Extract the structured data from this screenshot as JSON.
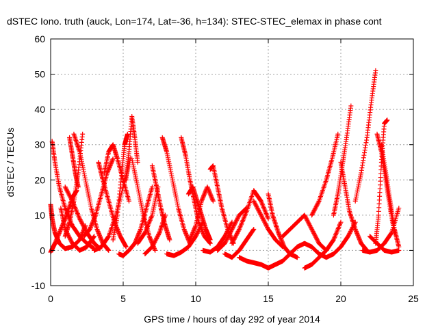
{
  "chart_data": {
    "type": "scatter",
    "title": "dSTEC Iono. truth (auck, Lon=174, Lat=-36, h=134): STEC-STEC_elemax in phase cont",
    "xlabel": "GPS time / hours of day 292 of year 2014",
    "ylabel": "dSTEC  / TECUs",
    "xlim": [
      0,
      25
    ],
    "ylim": [
      -10,
      60
    ],
    "xticks": [
      "0",
      "5",
      "10",
      "15",
      "20",
      "25"
    ],
    "yticks": [
      "-10",
      "0",
      "10",
      "20",
      "30",
      "40",
      "50",
      "60"
    ],
    "grid": true,
    "marker": "+",
    "color": "#ff0000",
    "arcs": [
      {
        "x": [
          0.0,
          0.1,
          0.3,
          0.6,
          1.0,
          1.5,
          2.0,
          2.4
        ],
        "y": [
          13,
          9,
          5,
          2,
          0.5,
          1,
          3,
          7
        ]
      },
      {
        "x": [
          0.1,
          0.3,
          0.6,
          1.0,
          1.5,
          2.0,
          2.5,
          3.0
        ],
        "y": [
          31,
          25,
          18,
          12,
          7,
          4,
          2,
          0.5
        ]
      },
      {
        "x": [
          0.0,
          0.3,
          0.7,
          1.1,
          1.5,
          1.8
        ],
        "y": [
          -0.5,
          2,
          6,
          10,
          15,
          17
        ]
      },
      {
        "x": [
          0.7,
          1.0,
          1.5,
          2.0,
          2.5,
          3.0
        ],
        "y": [
          12,
          6,
          2,
          0,
          1,
          4
        ]
      },
      {
        "x": [
          1.0,
          1.5,
          2.0,
          2.5,
          3.0,
          3.4
        ],
        "y": [
          18,
          14,
          9,
          5,
          2,
          0.5
        ]
      },
      {
        "x": [
          1.3,
          1.5,
          1.7,
          1.9
        ],
        "y": [
          32,
          27,
          22,
          18
        ]
      },
      {
        "x": [
          1.6,
          2.0,
          2.4,
          2.8,
          3.2,
          3.6,
          4.0
        ],
        "y": [
          33,
          28,
          20,
          12,
          6,
          2,
          0
        ]
      },
      {
        "x": [
          1.0,
          1.3,
          1.6,
          1.9,
          2.2
        ],
        "y": [
          4,
          8,
          14,
          22,
          33
        ]
      },
      {
        "x": [
          2.3,
          2.7,
          3.1,
          3.5,
          3.9,
          4.3
        ],
        "y": [
          4,
          6,
          10,
          16,
          22,
          26
        ]
      },
      {
        "x": [
          3.3,
          3.6,
          4.0,
          4.4,
          4.8,
          5.2
        ],
        "y": [
          25,
          20,
          14,
          8,
          4,
          1
        ]
      },
      {
        "x": [
          3.7,
          4.0,
          4.3,
          4.6,
          5.0,
          5.4
        ],
        "y": [
          22,
          28,
          30,
          26,
          20,
          14
        ]
      },
      {
        "x": [
          3.0,
          3.5,
          4.0,
          4.5,
          5.0,
          5.5
        ],
        "y": [
          0,
          1,
          4,
          10,
          18,
          26
        ]
      },
      {
        "x": [
          4.3,
          4.6,
          4.9,
          5.1,
          5.3
        ],
        "y": [
          3,
          10,
          22,
          30,
          33
        ]
      },
      {
        "x": [
          4.7,
          5.0,
          5.4,
          5.8,
          6.2,
          6.6,
          7.0
        ],
        "y": [
          -1,
          -1.5,
          0,
          2,
          6,
          12,
          18
        ]
      },
      {
        "x": [
          5.2,
          5.4,
          5.6,
          5.8,
          6.0
        ],
        "y": [
          20,
          28,
          38,
          32,
          25
        ]
      },
      {
        "x": [
          5.6,
          6.0,
          6.4,
          6.8,
          7.2
        ],
        "y": [
          26,
          18,
          10,
          4,
          0
        ]
      },
      {
        "x": [
          6.0,
          6.5,
          7.0,
          7.4
        ],
        "y": [
          2,
          5,
          10,
          18
        ]
      },
      {
        "x": [
          6.5,
          7.0,
          7.5,
          7.9
        ],
        "y": [
          -1,
          1,
          5,
          10
        ]
      },
      {
        "x": [
          7.0,
          7.3,
          7.6,
          7.9,
          8.2
        ],
        "y": [
          24,
          18,
          12,
          7,
          3
        ]
      },
      {
        "x": [
          7.7,
          8.0,
          8.4,
          8.8,
          9.2,
          9.6
        ],
        "y": [
          32,
          28,
          20,
          12,
          6,
          2
        ]
      },
      {
        "x": [
          8.0,
          8.5,
          9.0,
          9.5,
          10.0,
          10.5
        ],
        "y": [
          -1,
          -1.5,
          -0.5,
          1,
          4,
          8
        ]
      },
      {
        "x": [
          9.0,
          9.3,
          9.6,
          9.9,
          10.2,
          10.6,
          11.0
        ],
        "y": [
          32,
          27,
          20,
          14,
          8,
          4,
          2
        ]
      },
      {
        "x": [
          9.5,
          9.8,
          10.1,
          10.4,
          10.7,
          11.0
        ],
        "y": [
          16,
          18,
          14,
          10,
          6,
          3
        ]
      },
      {
        "x": [
          9.6,
          10.0,
          10.4,
          10.8,
          11.2
        ],
        "y": [
          3,
          7,
          14,
          18,
          14
        ]
      },
      {
        "x": [
          10.5,
          11.0,
          11.5,
          12.0,
          12.5
        ],
        "y": [
          0,
          -0.5,
          1,
          4,
          8
        ]
      },
      {
        "x": [
          11.0,
          11.2,
          11.5,
          11.8,
          12.2,
          12.6
        ],
        "y": [
          23,
          24,
          18,
          12,
          6,
          2
        ]
      },
      {
        "x": [
          11.5,
          12.0,
          12.5,
          13.0,
          13.5
        ],
        "y": [
          0,
          2,
          6,
          10,
          12
        ]
      },
      {
        "x": [
          12.0,
          12.5,
          13.0,
          13.5,
          14.0
        ],
        "y": [
          -1,
          -2,
          0,
          3,
          6
        ]
      },
      {
        "x": [
          12.5,
          13.0,
          13.5,
          14.0,
          14.5,
          15.0
        ],
        "y": [
          2,
          6,
          11,
          17,
          14,
          9
        ]
      },
      {
        "x": [
          13.0,
          13.5,
          14.0,
          14.5,
          15.0,
          15.5
        ],
        "y": [
          -2,
          -3,
          -3.5,
          -4,
          -5,
          -4
        ]
      },
      {
        "x": [
          14.0,
          14.5,
          15.0,
          15.5,
          16.0
        ],
        "y": [
          14,
          10,
          6,
          3,
          1
        ]
      },
      {
        "x": [
          15.0,
          15.3,
          15.7,
          16.1,
          16.5,
          17.0
        ],
        "y": [
          16,
          10,
          5,
          1,
          -1,
          -2
        ]
      },
      {
        "x": [
          15.5,
          16.0,
          16.5,
          17.0,
          17.5,
          18.0,
          18.5
        ],
        "y": [
          -4,
          -3,
          -1,
          1,
          2,
          1,
          -1
        ]
      },
      {
        "x": [
          16.0,
          16.5,
          17.0,
          17.5,
          18.0,
          18.5,
          19.0
        ],
        "y": [
          4,
          6,
          8,
          10,
          6,
          2,
          0
        ]
      },
      {
        "x": [
          17.5,
          18.0,
          18.5,
          19.0,
          19.5,
          20.0
        ],
        "y": [
          -5,
          -4,
          -2,
          0,
          3,
          8
        ]
      },
      {
        "x": [
          18.0,
          18.5,
          19.0,
          19.4,
          19.8
        ],
        "y": [
          10,
          14,
          20,
          26,
          33
        ]
      },
      {
        "x": [
          18.5,
          19.0,
          19.5,
          20.0,
          20.5,
          21.0
        ],
        "y": [
          -1,
          -2,
          -1,
          1,
          4,
          8
        ]
      },
      {
        "x": [
          19.5,
          19.8,
          20.1,
          20.4,
          20.7
        ],
        "y": [
          10,
          16,
          24,
          32,
          41
        ]
      },
      {
        "x": [
          20.0,
          20.3,
          20.6,
          21.0,
          21.4,
          21.8
        ],
        "y": [
          25,
          18,
          11,
          6,
          2,
          0
        ]
      },
      {
        "x": [
          21.0,
          21.4,
          21.8,
          22.1,
          22.4
        ],
        "y": [
          14,
          22,
          32,
          42,
          51
        ]
      },
      {
        "x": [
          22.4,
          22.6,
          22.8,
          23.0,
          23.2
        ],
        "y": [
          2,
          10,
          25,
          36,
          37
        ]
      },
      {
        "x": [
          22.5,
          22.8,
          23.1,
          23.4,
          23.7
        ],
        "y": [
          33,
          28,
          20,
          12,
          5
        ]
      },
      {
        "x": [
          21.5,
          22.0,
          22.5,
          23.0,
          23.5,
          24.0
        ],
        "y": [
          0,
          -0.5,
          0,
          2,
          5,
          12
        ]
      },
      {
        "x": [
          22.0,
          22.5,
          23.0,
          23.5,
          24.0
        ],
        "y": [
          4,
          2,
          0,
          -0.5,
          0
        ]
      },
      {
        "x": [
          22.8,
          23.1,
          23.4,
          23.7,
          24.0
        ],
        "y": [
          30,
          22,
          14,
          6,
          1
        ]
      }
    ]
  }
}
